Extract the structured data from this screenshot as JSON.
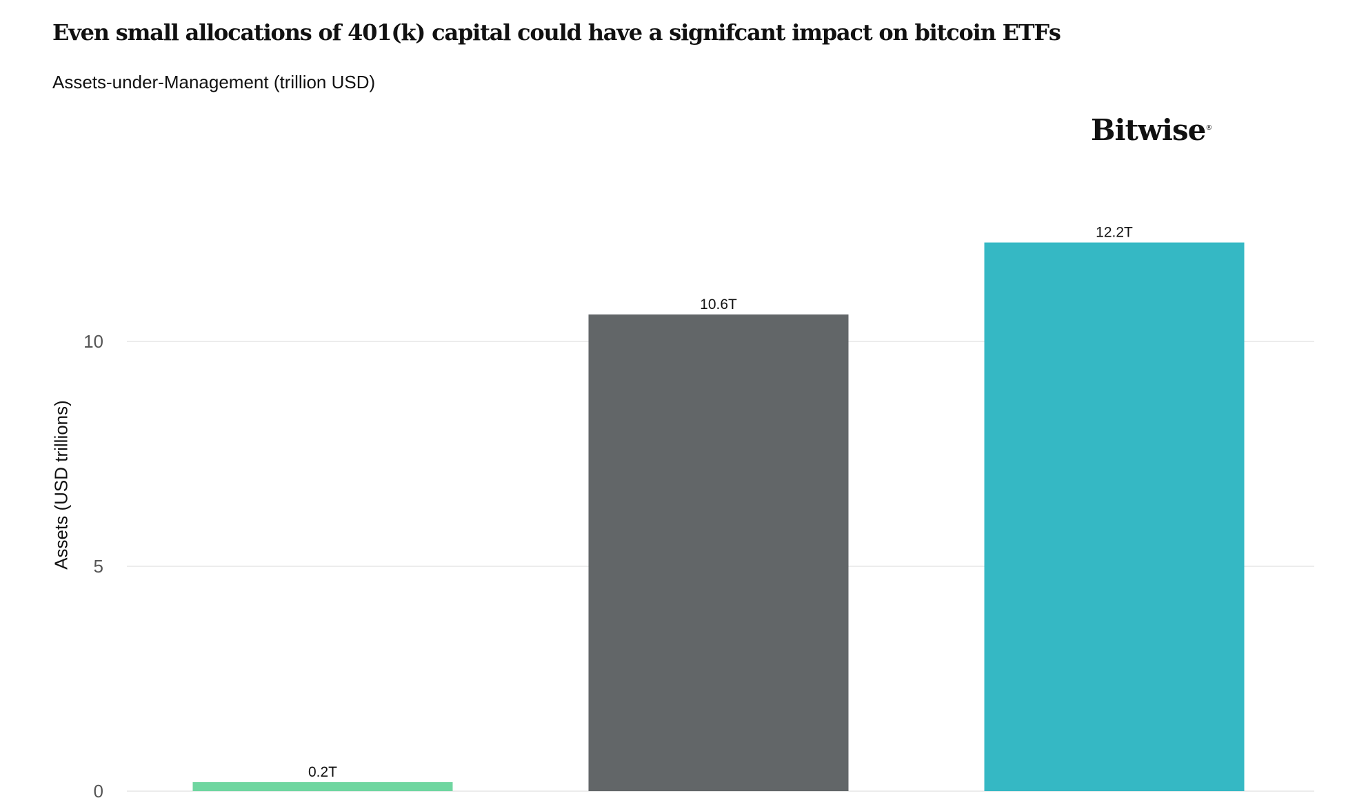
{
  "chart_data": {
    "type": "bar",
    "title": "Even small allocations of 401(k) capital could have a signifcant impact on bitcoin ETFs",
    "subtitle": "Assets-under-Management (trillion USD)",
    "ylabel": "Assets (USD trillions)",
    "xlabel": "",
    "ylim": [
      0,
      13.2
    ],
    "yticks": [
      0,
      5,
      10
    ],
    "grid": true,
    "legend": "none",
    "categories": [
      "",
      "",
      ""
    ],
    "values": [
      0.2,
      10.6,
      12.2
    ],
    "data_labels": [
      "0.2T",
      "10.6T",
      "12.2T"
    ],
    "colors": [
      "#6fd6a0",
      "#626668",
      "#35b8c4"
    ]
  },
  "brand": {
    "logo_text": "Bitwise"
  }
}
